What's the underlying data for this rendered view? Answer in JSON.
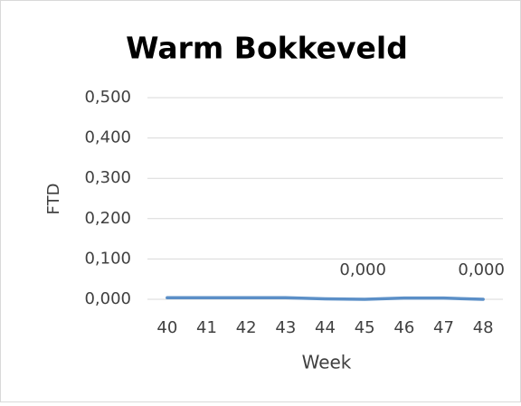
{
  "chart_data": {
    "type": "line",
    "title": "Warm Bokkeveld",
    "x_label": "Week",
    "y_label": "FTD",
    "categories": [
      "40",
      "41",
      "42",
      "43",
      "44",
      "45",
      "46",
      "47",
      "48"
    ],
    "series": [
      {
        "name": "FTD",
        "color": "#5b8fc7",
        "values": [
          0.004,
          0.004,
          0.004,
          0.004,
          0.001,
          0,
          0.003,
          0.003,
          0
        ],
        "value_labels": [
          null,
          null,
          null,
          null,
          null,
          "0,000",
          null,
          null,
          "0,000"
        ]
      }
    ],
    "ylim": [
      0,
      0.5
    ],
    "yticks": [
      {
        "value": 0,
        "label": "0,000"
      },
      {
        "value": 0.1,
        "label": "0,100"
      },
      {
        "value": 0.2,
        "label": "0,200"
      },
      {
        "value": 0.3,
        "label": "0,300"
      },
      {
        "value": 0.4,
        "label": "0,400"
      },
      {
        "value": 0.5,
        "label": "0,500"
      }
    ],
    "grid": true,
    "legend": false
  }
}
